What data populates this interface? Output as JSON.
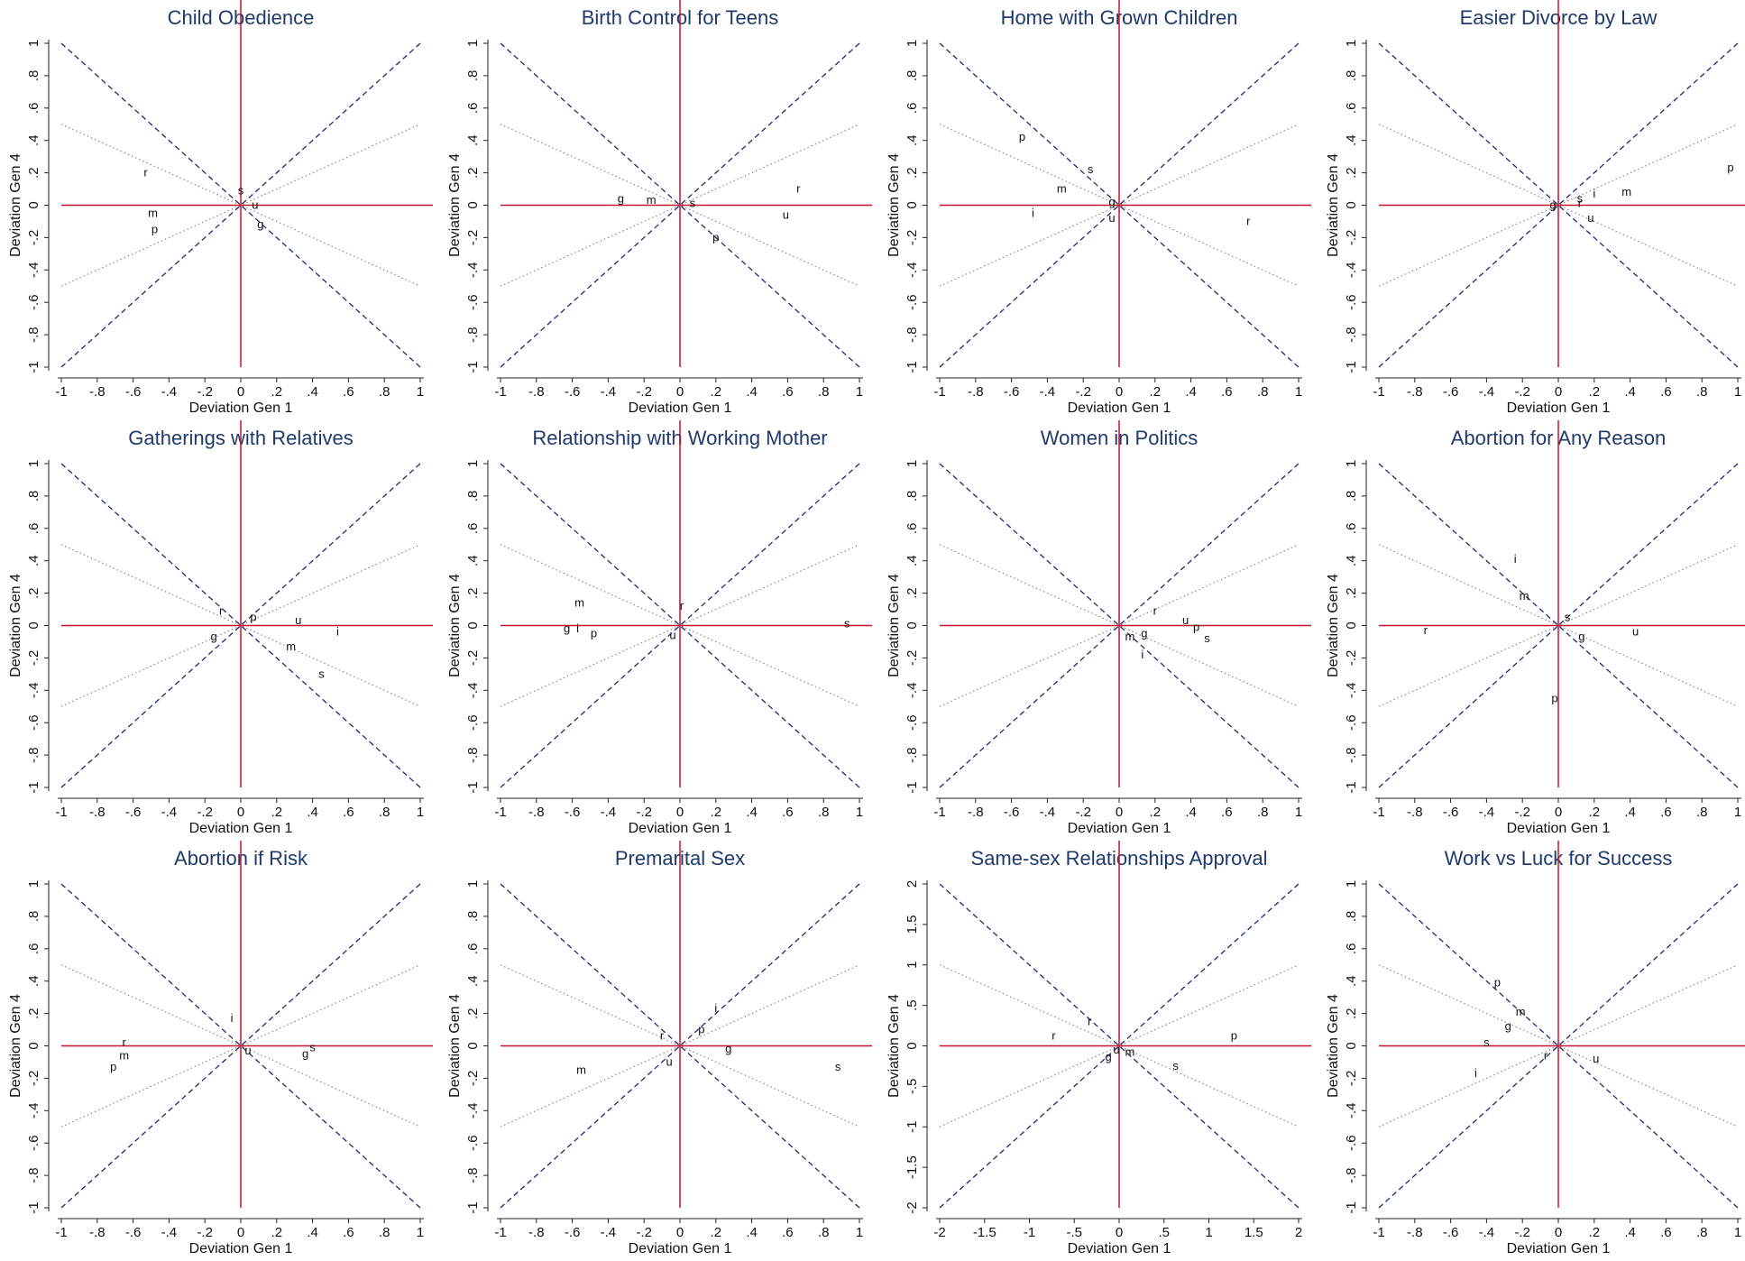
{
  "style": {
    "dashed_color": "#1f2a6e",
    "dotted_color": "#8a8a8a",
    "axis_color": "#c8102e",
    "title_color": "#1f3a6b"
  },
  "chart_data": [
    {
      "type": "scatter",
      "title": "Child Obedience",
      "xlabel": "Deviation Gen 1",
      "ylabel": "Deviation Gen 4",
      "xlim": [
        -1,
        1
      ],
      "ylim": [
        -1,
        1
      ],
      "xticks": [
        -1,
        -0.8,
        -0.6,
        -0.4,
        -0.2,
        0,
        0.2,
        0.4,
        0.6,
        0.8,
        1
      ],
      "xtick_labels": [
        "-1",
        "-.8",
        "-.6",
        "-.4",
        "-.2",
        "0",
        ".2",
        ".4",
        ".6",
        ".8",
        "1"
      ],
      "yticks": [
        -1,
        -0.8,
        -0.6,
        -0.4,
        -0.2,
        0,
        0.2,
        0.4,
        0.6,
        0.8,
        1
      ],
      "ytick_labels": [
        "-1",
        "-.8",
        "-.6",
        "-.4",
        "-.2",
        "0",
        ".2",
        ".4",
        ".6",
        ".8",
        "1"
      ],
      "points": [
        {
          "label": "r",
          "x": -0.53,
          "y": 0.2
        },
        {
          "label": "s",
          "x": 0.0,
          "y": 0.09
        },
        {
          "label": "u",
          "x": 0.08,
          "y": 0.0
        },
        {
          "label": "m",
          "x": -0.49,
          "y": -0.05
        },
        {
          "label": "p",
          "x": -0.48,
          "y": -0.15
        },
        {
          "label": "g",
          "x": 0.11,
          "y": -0.12
        }
      ]
    },
    {
      "type": "scatter",
      "title": "Birth Control for Teens",
      "xlabel": "Deviation Gen 1",
      "ylabel": "Deviation Gen 4",
      "xlim": [
        -1,
        1
      ],
      "ylim": [
        -1,
        1
      ],
      "xticks": [
        -1,
        -0.8,
        -0.6,
        -0.4,
        -0.2,
        0,
        0.2,
        0.4,
        0.6,
        0.8,
        1
      ],
      "xtick_labels": [
        "-1",
        "-.8",
        "-.6",
        "-.4",
        "-.2",
        "0",
        ".2",
        ".4",
        ".6",
        ".8",
        "1"
      ],
      "yticks": [
        -1,
        -0.8,
        -0.6,
        -0.4,
        -0.2,
        0,
        0.2,
        0.4,
        0.6,
        0.8,
        1
      ],
      "ytick_labels": [
        "-1",
        "-.8",
        "-.6",
        "-.4",
        "-.2",
        "0",
        ".2",
        ".4",
        ".6",
        ".8",
        "1"
      ],
      "points": [
        {
          "label": "g",
          "x": -0.33,
          "y": 0.04
        },
        {
          "label": "m",
          "x": -0.16,
          "y": 0.03
        },
        {
          "label": "s",
          "x": 0.07,
          "y": 0.01
        },
        {
          "label": "r",
          "x": 0.66,
          "y": 0.1
        },
        {
          "label": "u",
          "x": 0.59,
          "y": -0.06
        },
        {
          "label": "p",
          "x": 0.2,
          "y": -0.2
        }
      ]
    },
    {
      "type": "scatter",
      "title": "Home with Grown Children",
      "xlabel": "Deviation Gen 1",
      "ylabel": "Deviation Gen 4",
      "xlim": [
        -1,
        1
      ],
      "ylim": [
        -1,
        1
      ],
      "xticks": [
        -1,
        -0.8,
        -0.6,
        -0.4,
        -0.2,
        0,
        0.2,
        0.4,
        0.6,
        0.8,
        1
      ],
      "xtick_labels": [
        "-1",
        "-.8",
        "-.6",
        "-.4",
        "-.2",
        "0",
        ".2",
        ".4",
        ".6",
        ".8",
        "1"
      ],
      "yticks": [
        -1,
        -0.8,
        -0.6,
        -0.4,
        -0.2,
        0,
        0.2,
        0.4,
        0.6,
        0.8,
        1
      ],
      "ytick_labels": [
        "-1",
        "-.8",
        "-.6",
        "-.4",
        "-.2",
        "0",
        ".2",
        ".4",
        ".6",
        ".8",
        "1"
      ],
      "points": [
        {
          "label": "p",
          "x": -0.54,
          "y": 0.42
        },
        {
          "label": "s",
          "x": -0.16,
          "y": 0.22
        },
        {
          "label": "m",
          "x": -0.32,
          "y": 0.1
        },
        {
          "label": "i",
          "x": -0.48,
          "y": -0.05
        },
        {
          "label": "g",
          "x": -0.04,
          "y": 0.02
        },
        {
          "label": "u",
          "x": -0.04,
          "y": -0.08
        },
        {
          "label": "r",
          "x": 0.72,
          "y": -0.1
        }
      ]
    },
    {
      "type": "scatter",
      "title": "Easier Divorce by Law",
      "xlabel": "Deviation Gen 1",
      "ylabel": "Deviation Gen 4",
      "xlim": [
        -1,
        1
      ],
      "ylim": [
        -1,
        1
      ],
      "xticks": [
        -1,
        -0.8,
        -0.6,
        -0.4,
        -0.2,
        0,
        0.2,
        0.4,
        0.6,
        0.8,
        1
      ],
      "xtick_labels": [
        "-1",
        "-.8",
        "-.6",
        "-.4",
        "-.2",
        "0",
        ".2",
        ".4",
        ".6",
        ".8",
        "1"
      ],
      "yticks": [
        -1,
        -0.8,
        -0.6,
        -0.4,
        -0.2,
        0,
        0.2,
        0.4,
        0.6,
        0.8,
        1
      ],
      "ytick_labels": [
        "-1",
        "-.8",
        "-.6",
        "-.4",
        "-.2",
        "0",
        ".2",
        ".4",
        ".6",
        ".8",
        "1"
      ],
      "points": [
        {
          "label": "p",
          "x": 0.96,
          "y": 0.23
        },
        {
          "label": "i",
          "x": 0.2,
          "y": 0.07
        },
        {
          "label": "m",
          "x": 0.38,
          "y": 0.08
        },
        {
          "label": "s",
          "x": 0.12,
          "y": 0.04
        },
        {
          "label": "g",
          "x": -0.03,
          "y": 0.0
        },
        {
          "label": "r",
          "x": 0.12,
          "y": 0.01
        },
        {
          "label": "u",
          "x": 0.18,
          "y": -0.08
        }
      ]
    },
    {
      "type": "scatter",
      "title": "Gatherings with Relatives",
      "xlabel": "Deviation Gen 1",
      "ylabel": "Deviation Gen 4",
      "xlim": [
        -1,
        1
      ],
      "ylim": [
        -1,
        1
      ],
      "xticks": [
        -1,
        -0.8,
        -0.6,
        -0.4,
        -0.2,
        0,
        0.2,
        0.4,
        0.6,
        0.8,
        1
      ],
      "xtick_labels": [
        "-1",
        "-.8",
        "-.6",
        "-.4",
        "-.2",
        "0",
        ".2",
        ".4",
        ".6",
        ".8",
        "1"
      ],
      "yticks": [
        -1,
        -0.8,
        -0.6,
        -0.4,
        -0.2,
        0,
        0.2,
        0.4,
        0.6,
        0.8,
        1
      ],
      "ytick_labels": [
        "-1",
        "-.8",
        "-.6",
        "-.4",
        "-.2",
        "0",
        ".2",
        ".4",
        ".6",
        ".8",
        "1"
      ],
      "points": [
        {
          "label": "r",
          "x": -0.11,
          "y": 0.09
        },
        {
          "label": "p",
          "x": 0.07,
          "y": 0.05
        },
        {
          "label": "u",
          "x": 0.32,
          "y": 0.03
        },
        {
          "label": "i",
          "x": 0.54,
          "y": -0.04
        },
        {
          "label": "g",
          "x": -0.15,
          "y": -0.07
        },
        {
          "label": "m",
          "x": 0.28,
          "y": -0.13
        },
        {
          "label": "s",
          "x": 0.45,
          "y": -0.3
        }
      ]
    },
    {
      "type": "scatter",
      "title": "Relationship with Working Mother",
      "xlabel": "Deviation Gen 1",
      "ylabel": "Deviation Gen 4",
      "xlim": [
        -1,
        1
      ],
      "ylim": [
        -1,
        1
      ],
      "xticks": [
        -1,
        -0.8,
        -0.6,
        -0.4,
        -0.2,
        0,
        0.2,
        0.4,
        0.6,
        0.8,
        1
      ],
      "xtick_labels": [
        "-1",
        "-.8",
        "-.6",
        "-.4",
        "-.2",
        "0",
        ".2",
        ".4",
        ".6",
        ".8",
        "1"
      ],
      "yticks": [
        -1,
        -0.8,
        -0.6,
        -0.4,
        -0.2,
        0,
        0.2,
        0.4,
        0.6,
        0.8,
        1
      ],
      "ytick_labels": [
        "-1",
        "-.8",
        "-.6",
        "-.4",
        "-.2",
        "0",
        ".2",
        ".4",
        ".6",
        ".8",
        "1"
      ],
      "points": [
        {
          "label": "m",
          "x": -0.56,
          "y": 0.14
        },
        {
          "label": "r",
          "x": 0.01,
          "y": 0.12
        },
        {
          "label": "s",
          "x": 0.93,
          "y": 0.01
        },
        {
          "label": "g",
          "x": -0.63,
          "y": -0.02
        },
        {
          "label": "i",
          "x": -0.57,
          "y": -0.02
        },
        {
          "label": "p",
          "x": -0.48,
          "y": -0.05
        },
        {
          "label": "u",
          "x": -0.04,
          "y": -0.06
        }
      ]
    },
    {
      "type": "scatter",
      "title": "Women in Politics",
      "xlabel": "Deviation Gen 1",
      "ylabel": "Deviation Gen 4",
      "xlim": [
        -1,
        1
      ],
      "ylim": [
        -1,
        1
      ],
      "xticks": [
        -1,
        -0.8,
        -0.6,
        -0.4,
        -0.2,
        0,
        0.2,
        0.4,
        0.6,
        0.8,
        1
      ],
      "xtick_labels": [
        "-1",
        "-.8",
        "-.6",
        "-.4",
        "-.2",
        "0",
        ".2",
        ".4",
        ".6",
        ".8",
        "1"
      ],
      "yticks": [
        -1,
        -0.8,
        -0.6,
        -0.4,
        -0.2,
        0,
        0.2,
        0.4,
        0.6,
        0.8,
        1
      ],
      "ytick_labels": [
        "-1",
        "-.8",
        "-.6",
        "-.4",
        "-.2",
        "0",
        ".2",
        ".4",
        ".6",
        ".8",
        "1"
      ],
      "points": [
        {
          "label": "r",
          "x": 0.2,
          "y": 0.09
        },
        {
          "label": "u",
          "x": 0.37,
          "y": 0.03
        },
        {
          "label": "p",
          "x": 0.43,
          "y": -0.01
        },
        {
          "label": "s",
          "x": 0.49,
          "y": -0.08
        },
        {
          "label": "m",
          "x": 0.06,
          "y": -0.07
        },
        {
          "label": "g",
          "x": 0.14,
          "y": -0.05
        },
        {
          "label": "i",
          "x": 0.13,
          "y": -0.18
        }
      ]
    },
    {
      "type": "scatter",
      "title": "Abortion for Any Reason",
      "xlabel": "Deviation Gen 1",
      "ylabel": "Deviation Gen 4",
      "xlim": [
        -1,
        1
      ],
      "ylim": [
        -1,
        1
      ],
      "xticks": [
        -1,
        -0.8,
        -0.6,
        -0.4,
        -0.2,
        0,
        0.2,
        0.4,
        0.6,
        0.8,
        1
      ],
      "xtick_labels": [
        "-1",
        "-.8",
        "-.6",
        "-.4",
        "-.2",
        "0",
        ".2",
        ".4",
        ".6",
        ".8",
        "1"
      ],
      "yticks": [
        -1,
        -0.8,
        -0.6,
        -0.4,
        -0.2,
        0,
        0.2,
        0.4,
        0.6,
        0.8,
        1
      ],
      "ytick_labels": [
        "-1",
        "-.8",
        "-.6",
        "-.4",
        "-.2",
        "0",
        ".2",
        ".4",
        ".6",
        ".8",
        "1"
      ],
      "points": [
        {
          "label": "i",
          "x": -0.24,
          "y": 0.41
        },
        {
          "label": "m",
          "x": -0.19,
          "y": 0.18
        },
        {
          "label": "s",
          "x": 0.05,
          "y": 0.05
        },
        {
          "label": "r",
          "x": -0.74,
          "y": -0.03
        },
        {
          "label": "g",
          "x": 0.13,
          "y": -0.07
        },
        {
          "label": "u",
          "x": 0.43,
          "y": -0.04
        },
        {
          "label": "p",
          "x": -0.02,
          "y": -0.45
        }
      ]
    },
    {
      "type": "scatter",
      "title": "Abortion if Risk",
      "xlabel": "Deviation Gen 1",
      "ylabel": "Deviation Gen 4",
      "xlim": [
        -1,
        1
      ],
      "ylim": [
        -1,
        1
      ],
      "xticks": [
        -1,
        -0.8,
        -0.6,
        -0.4,
        -0.2,
        0,
        0.2,
        0.4,
        0.6,
        0.8,
        1
      ],
      "xtick_labels": [
        "-1",
        "-.8",
        "-.6",
        "-.4",
        "-.2",
        "0",
        ".2",
        ".4",
        ".6",
        ".8",
        "1"
      ],
      "yticks": [
        -1,
        -0.8,
        -0.6,
        -0.4,
        -0.2,
        0,
        0.2,
        0.4,
        0.6,
        0.8,
        1
      ],
      "ytick_labels": [
        "-1",
        "-.8",
        "-.6",
        "-.4",
        "-.2",
        "0",
        ".2",
        ".4",
        ".6",
        ".8",
        "1"
      ],
      "points": [
        {
          "label": "i",
          "x": -0.05,
          "y": 0.17
        },
        {
          "label": "r",
          "x": -0.65,
          "y": 0.02
        },
        {
          "label": "m",
          "x": -0.65,
          "y": -0.06
        },
        {
          "label": "p",
          "x": -0.71,
          "y": -0.13
        },
        {
          "label": "u",
          "x": 0.04,
          "y": -0.03
        },
        {
          "label": "s",
          "x": 0.4,
          "y": -0.01
        },
        {
          "label": "g",
          "x": 0.36,
          "y": -0.05
        }
      ]
    },
    {
      "type": "scatter",
      "title": "Premarital Sex",
      "xlabel": "Deviation Gen 1",
      "ylabel": "Deviation Gen 4",
      "xlim": [
        -1,
        1
      ],
      "ylim": [
        -1,
        1
      ],
      "xticks": [
        -1,
        -0.8,
        -0.6,
        -0.4,
        -0.2,
        0,
        0.2,
        0.4,
        0.6,
        0.8,
        1
      ],
      "xtick_labels": [
        "-1",
        "-.8",
        "-.6",
        "-.4",
        "-.2",
        "0",
        ".2",
        ".4",
        ".6",
        ".8",
        "1"
      ],
      "yticks": [
        -1,
        -0.8,
        -0.6,
        -0.4,
        -0.2,
        0,
        0.2,
        0.4,
        0.6,
        0.8,
        1
      ],
      "ytick_labels": [
        "-1",
        "-.8",
        "-.6",
        "-.4",
        "-.2",
        "0",
        ".2",
        ".4",
        ".6",
        ".8",
        "1"
      ],
      "points": [
        {
          "label": "i",
          "x": 0.2,
          "y": 0.23
        },
        {
          "label": "p",
          "x": 0.12,
          "y": 0.1
        },
        {
          "label": "r",
          "x": -0.1,
          "y": 0.06
        },
        {
          "label": "g",
          "x": 0.27,
          "y": -0.02
        },
        {
          "label": "u",
          "x": -0.06,
          "y": -0.1
        },
        {
          "label": "m",
          "x": -0.55,
          "y": -0.15
        },
        {
          "label": "s",
          "x": 0.88,
          "y": -0.13
        }
      ]
    },
    {
      "type": "scatter",
      "title": "Same-sex Relationships Approval",
      "xlabel": "Deviation Gen 1",
      "ylabel": "Deviation Gen 4",
      "xlim": [
        -2,
        2
      ],
      "ylim": [
        -2,
        2
      ],
      "xticks": [
        -2,
        -1.5,
        -1,
        -0.5,
        0,
        0.5,
        1,
        1.5,
        2
      ],
      "xtick_labels": [
        "-2",
        "-1.5",
        "-1",
        "-.5",
        "0",
        ".5",
        "1",
        "1.5",
        "2"
      ],
      "yticks": [
        -2,
        -1.5,
        -1,
        -0.5,
        0,
        0.5,
        1,
        1.5,
        2
      ],
      "ytick_labels": [
        "-2",
        "-1.5",
        "-1",
        "-.5",
        "0",
        ".5",
        "1",
        "1.5",
        "2"
      ],
      "points": [
        {
          "label": "r",
          "x": -0.33,
          "y": 0.3
        },
        {
          "label": "r",
          "x": -0.73,
          "y": 0.12
        },
        {
          "label": "p",
          "x": 1.28,
          "y": 0.12
        },
        {
          "label": "u",
          "x": -0.03,
          "y": -0.05
        },
        {
          "label": "m",
          "x": 0.12,
          "y": -0.08
        },
        {
          "label": "g",
          "x": -0.12,
          "y": -0.14
        },
        {
          "label": "s",
          "x": 0.63,
          "y": -0.25
        }
      ]
    },
    {
      "type": "scatter",
      "title": "Work vs Luck for Success",
      "xlabel": "Deviation Gen 1",
      "ylabel": "Deviation Gen 4",
      "xlim": [
        -1,
        1
      ],
      "ylim": [
        -1,
        1
      ],
      "xticks": [
        -1,
        -0.8,
        -0.6,
        -0.4,
        -0.2,
        0,
        0.2,
        0.4,
        0.6,
        0.8,
        1
      ],
      "xtick_labels": [
        "-1",
        "-.8",
        "-.6",
        "-.4",
        "-.2",
        "0",
        ".2",
        ".4",
        ".6",
        ".8",
        "1"
      ],
      "yticks": [
        -1,
        -0.8,
        -0.6,
        -0.4,
        -0.2,
        0,
        0.2,
        0.4,
        0.6,
        0.8,
        1
      ],
      "ytick_labels": [
        "-1",
        "-.8",
        "-.6",
        "-.4",
        "-.2",
        "0",
        ".2",
        ".4",
        ".6",
        ".8",
        "1"
      ],
      "points": [
        {
          "label": "p",
          "x": -0.34,
          "y": 0.39
        },
        {
          "label": "m",
          "x": -0.21,
          "y": 0.21
        },
        {
          "label": "g",
          "x": -0.28,
          "y": 0.12
        },
        {
          "label": "s",
          "x": -0.4,
          "y": 0.02
        },
        {
          "label": "r",
          "x": -0.07,
          "y": -0.06
        },
        {
          "label": "u",
          "x": 0.21,
          "y": -0.08
        },
        {
          "label": "i",
          "x": -0.46,
          "y": -0.17
        }
      ]
    }
  ]
}
